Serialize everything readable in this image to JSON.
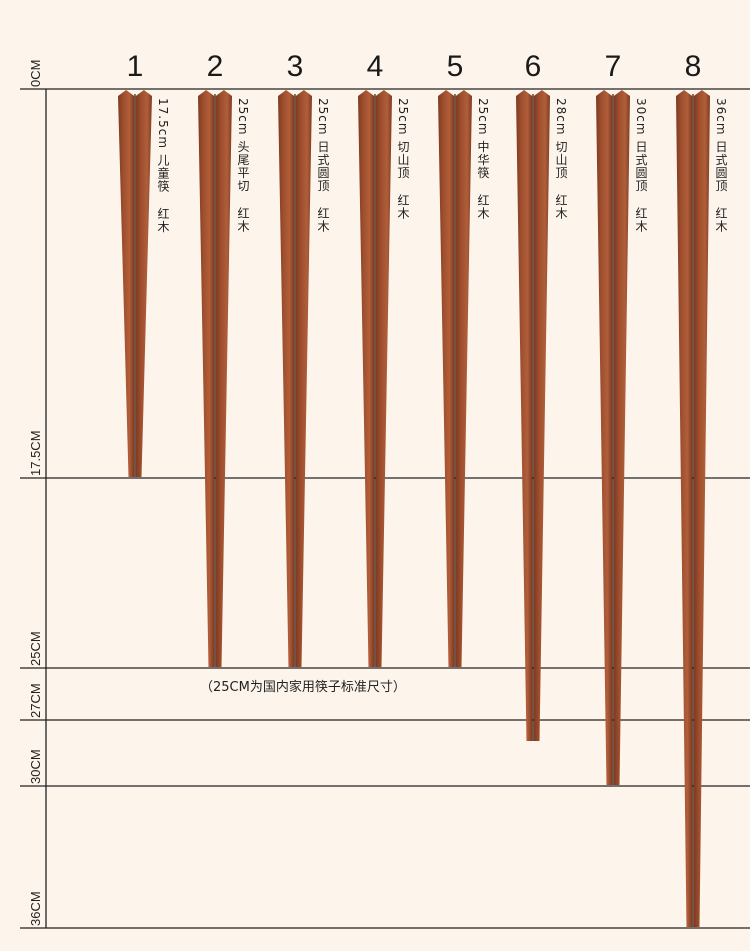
{
  "axis": {
    "ticks": [
      {
        "value": 0,
        "label": "0CM"
      },
      {
        "value": 17.5,
        "label": "17.5CM"
      },
      {
        "value": 25,
        "label": "25CM"
      },
      {
        "value": 27,
        "label": "27CM"
      },
      {
        "value": 30,
        "label": "30CM"
      },
      {
        "value": 36,
        "label": "36CM"
      }
    ]
  },
  "chopsticks": [
    {
      "number": "1",
      "length_cm": 17.5,
      "size": "17.5cm",
      "style": "儿童筷",
      "material": "红木"
    },
    {
      "number": "2",
      "length_cm": 25,
      "size": "25cm",
      "style": "头尾平切",
      "material": "红木"
    },
    {
      "number": "3",
      "length_cm": 25,
      "size": "25cm",
      "style": "日式圆顶",
      "material": "红木"
    },
    {
      "number": "4",
      "length_cm": 25,
      "size": "25cm",
      "style": "切山顶",
      "material": "红木"
    },
    {
      "number": "5",
      "length_cm": 25,
      "size": "25cm",
      "style": "中华筷",
      "material": "红木"
    },
    {
      "number": "6",
      "length_cm": 28,
      "size": "28cm",
      "style": "切山顶",
      "material": "红木"
    },
    {
      "number": "7",
      "length_cm": 30,
      "size": "30cm",
      "style": "日式圆顶",
      "material": "红木"
    },
    {
      "number": "8",
      "length_cm": 36,
      "size": "36cm",
      "style": "日式圆顶",
      "material": "红木"
    }
  ],
  "note": "（25CM为国内家用筷子标准尺寸）",
  "colors": {
    "background": "#fdf5ec",
    "wood": "#a0502f",
    "wood_dark": "#7e3a20",
    "line": "#222222"
  }
}
